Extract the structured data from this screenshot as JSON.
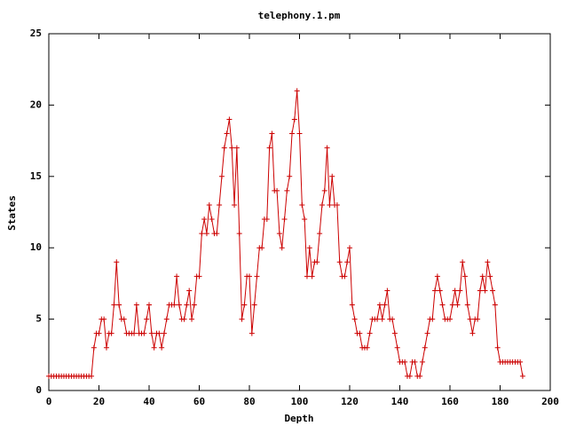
{
  "chart_data": {
    "type": "line",
    "title": "telephony.1.pm",
    "x_label": "Depth",
    "y_label": "States",
    "xlim": [
      0,
      200
    ],
    "ylim": [
      0,
      25
    ],
    "xticks": [
      0,
      20,
      40,
      60,
      80,
      100,
      120,
      140,
      160,
      180,
      200
    ],
    "yticks": [
      0,
      5,
      10,
      15,
      20,
      25
    ],
    "grid": false,
    "markers": true,
    "series": [
      {
        "color": "#cc0000",
        "x": [
          0,
          1,
          2,
          3,
          4,
          5,
          6,
          7,
          8,
          9,
          10,
          11,
          12,
          13,
          14,
          15,
          16,
          17,
          18,
          19,
          20,
          21,
          22,
          23,
          24,
          25,
          26,
          27,
          28,
          29,
          30,
          31,
          32,
          33,
          34,
          35,
          36,
          37,
          38,
          39,
          40,
          41,
          42,
          43,
          44,
          45,
          46,
          47,
          48,
          49,
          50,
          51,
          52,
          53,
          54,
          55,
          56,
          57,
          58,
          59,
          60,
          61,
          62,
          63,
          64,
          65,
          66,
          67,
          68,
          69,
          70,
          71,
          72,
          73,
          74,
          75,
          76,
          77,
          78,
          79,
          80,
          81,
          82,
          83,
          84,
          85,
          86,
          87,
          88,
          89,
          90,
          91,
          92,
          93,
          94,
          95,
          96,
          97,
          98,
          99,
          100,
          101,
          102,
          103,
          104,
          105,
          106,
          107,
          108,
          109,
          110,
          111,
          112,
          113,
          114,
          115,
          116,
          117,
          118,
          119,
          120,
          121,
          122,
          123,
          124,
          125,
          126,
          127,
          128,
          129,
          130,
          131,
          132,
          133,
          134,
          135,
          136,
          137,
          138,
          139,
          140,
          141,
          142,
          143,
          144,
          145,
          146,
          147,
          148,
          149,
          150,
          151,
          152,
          153,
          154,
          155,
          156,
          157,
          158,
          159,
          160,
          161,
          162,
          163,
          164,
          165,
          166,
          167,
          168,
          169,
          170,
          171,
          172,
          173,
          174,
          175,
          176,
          177,
          178,
          179,
          180,
          181,
          182,
          183,
          184,
          185,
          186,
          187,
          188,
          189
        ],
        "values": [
          1,
          1,
          1,
          1,
          1,
          1,
          1,
          1,
          1,
          1,
          1,
          1,
          1,
          1,
          1,
          1,
          1,
          1,
          3,
          4,
          4,
          5,
          5,
          3,
          4,
          4,
          6,
          9,
          6,
          5,
          5,
          4,
          4,
          4,
          4,
          6,
          4,
          4,
          4,
          5,
          6,
          4,
          3,
          4,
          4,
          3,
          4,
          5,
          6,
          6,
          6,
          8,
          6,
          5,
          5,
          6,
          7,
          5,
          6,
          8,
          8,
          11,
          12,
          11,
          13,
          12,
          11,
          11,
          13,
          15,
          17,
          18,
          19,
          17,
          13,
          17,
          11,
          5,
          6,
          8,
          8,
          4,
          6,
          8,
          10,
          10,
          12,
          12,
          17,
          18,
          14,
          14,
          11,
          10,
          12,
          14,
          15,
          18,
          19,
          21,
          18,
          13,
          12,
          8,
          10,
          8,
          9,
          9,
          11,
          13,
          14,
          17,
          13,
          15,
          13,
          13,
          9,
          8,
          8,
          9,
          10,
          6,
          5,
          4,
          4,
          3,
          3,
          3,
          4,
          5,
          5,
          5,
          6,
          5,
          6,
          7,
          5,
          5,
          4,
          3,
          2,
          2,
          2,
          1,
          1,
          2,
          2,
          1,
          1,
          2,
          3,
          4,
          5,
          5,
          7,
          8,
          7,
          6,
          5,
          5,
          5,
          6,
          7,
          6,
          7,
          9,
          8,
          6,
          5,
          4,
          5,
          5,
          7,
          8,
          7,
          9,
          8,
          7,
          6,
          3,
          2,
          2,
          2,
          2,
          2,
          2,
          2,
          2,
          2,
          1
        ]
      }
    ]
  }
}
